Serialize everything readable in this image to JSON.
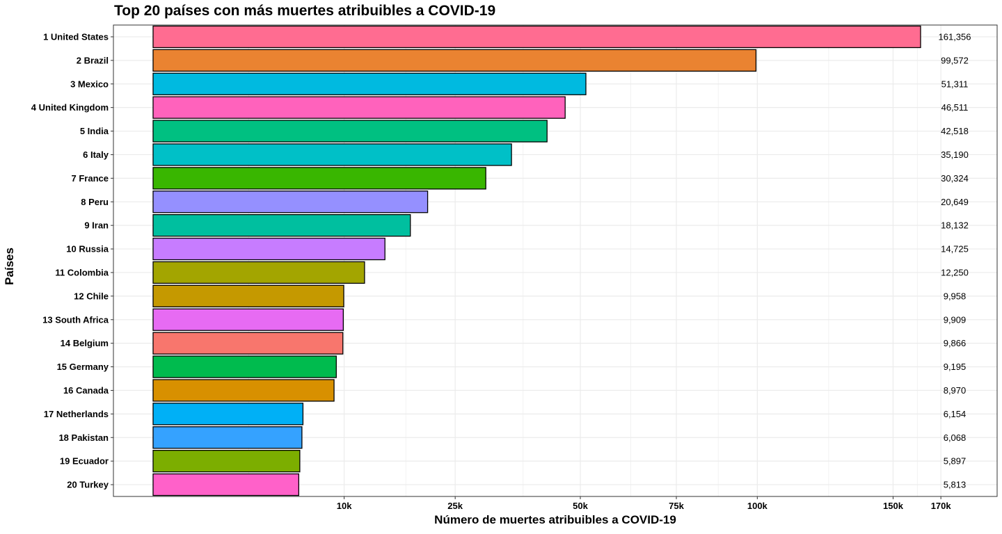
{
  "chart_data": {
    "type": "bar",
    "orientation": "horizontal",
    "title": "Top 20 países con más muertes atribuibles a COVID-19",
    "xlabel": "Número de muertes atribuibles a COVID-19",
    "ylabel": "Países",
    "x_scale": "sqrt",
    "xlim": [
      0,
      170000
    ],
    "grid": true,
    "legend": "none",
    "x_ticks": [
      {
        "value": 10000,
        "label": "10k"
      },
      {
        "value": 25000,
        "label": "25k"
      },
      {
        "value": 50000,
        "label": "50k"
      },
      {
        "value": 75000,
        "label": "75k"
      },
      {
        "value": 100000,
        "label": "100k"
      },
      {
        "value": 150000,
        "label": "150k"
      },
      {
        "value": 170000,
        "label": "170k"
      }
    ],
    "categories": [
      "1 United States",
      "2 Brazil",
      "3 Mexico",
      "4 United Kingdom",
      "5 India",
      "6 Italy",
      "7 France",
      "8 Peru",
      "9 Iran",
      "10 Russia",
      "11 Colombia",
      "12 Chile",
      "13 South Africa",
      "14 Belgium",
      "15 Germany",
      "16 Canada",
      "17 Netherlands",
      "18 Pakistan",
      "19 Ecuador",
      "20 Turkey"
    ],
    "values": [
      161356,
      99572,
      51311,
      46511,
      42518,
      35190,
      30324,
      20649,
      18132,
      14725,
      12250,
      9958,
      9909,
      9866,
      9195,
      8970,
      6154,
      6068,
      5897,
      5813
    ],
    "value_labels": [
      "161,356",
      "99,572",
      "51,311",
      "46,511",
      "42,518",
      "35,190",
      "30,324",
      "20,649",
      "18,132",
      "14,725",
      "12,250",
      "9,958",
      "9,909",
      "9,866",
      "9,195",
      "8,970",
      "6,154",
      "6,068",
      "5,897",
      "5,813"
    ],
    "colors": [
      "#FF6C91",
      "#EA8331",
      "#00BAE0",
      "#FF62BC",
      "#00C081",
      "#00C0C7",
      "#39B600",
      "#9590FF",
      "#00BF9F",
      "#C77CFF",
      "#A3A500",
      "#C59900",
      "#E76BF3",
      "#F8766D",
      "#00BB4E",
      "#D89000",
      "#00B0F6",
      "#35A2FF",
      "#7CAE00",
      "#FF61C9"
    ]
  }
}
